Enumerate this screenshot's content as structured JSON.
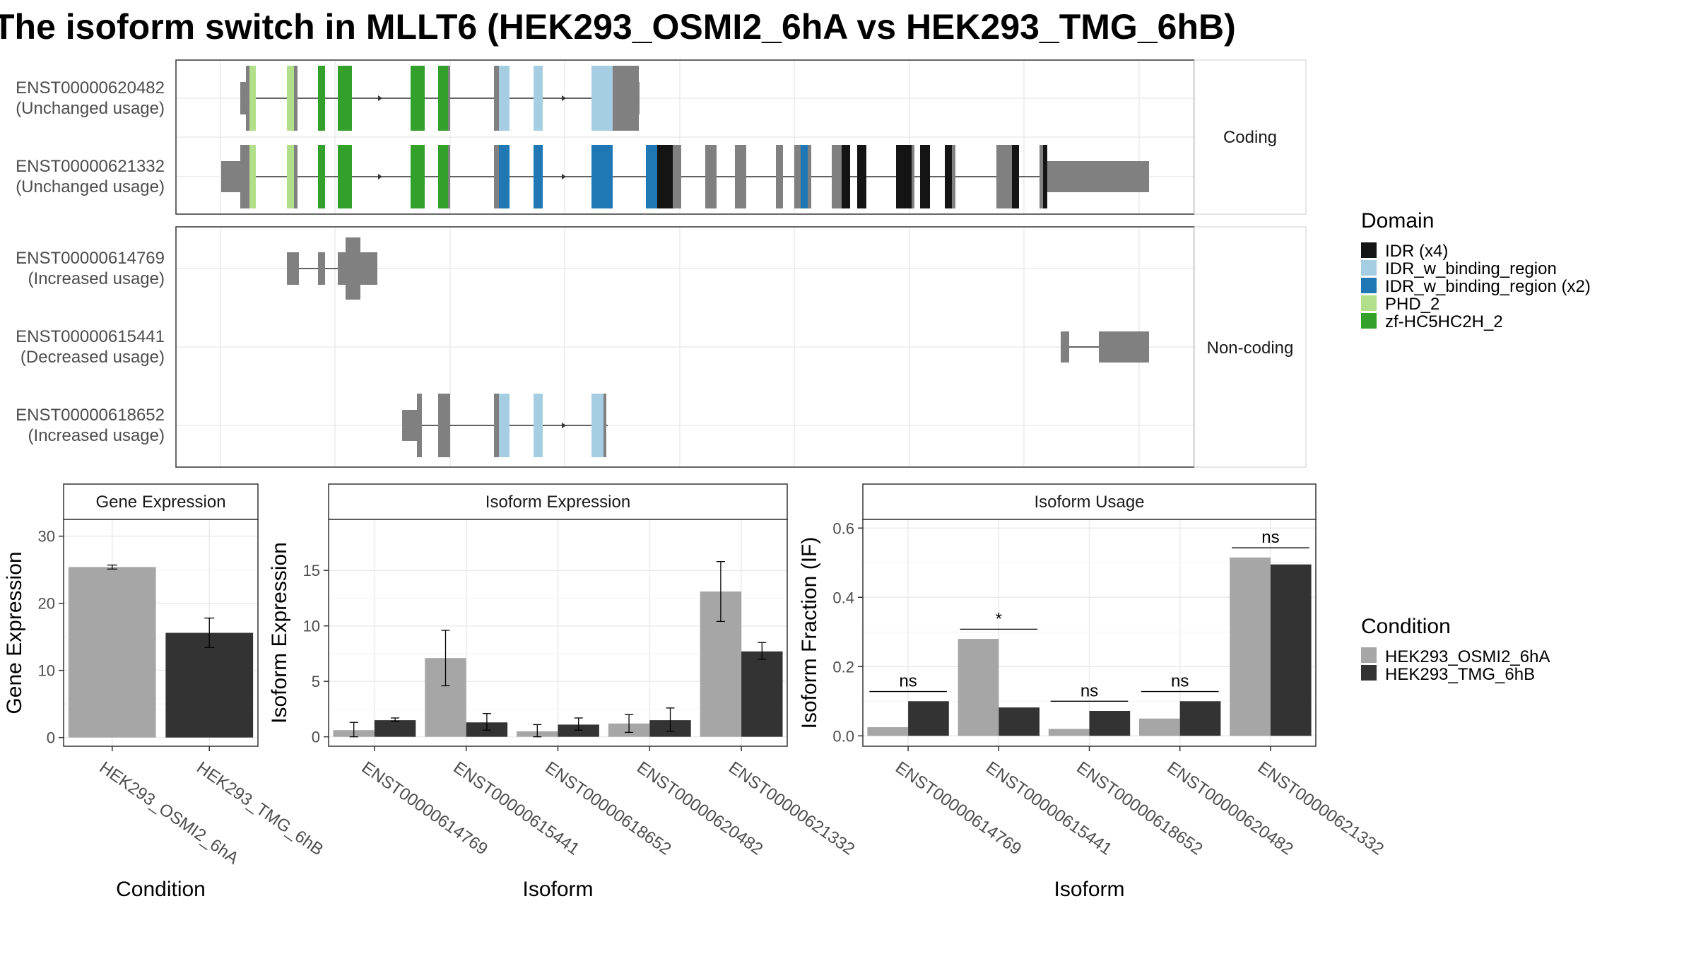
{
  "title": "The isoform switch in MLLT6 (HEK293_OSMI2_6hA vs HEK293_TMG_6hB)",
  "colors": {
    "cond_a": "#a6a6a6",
    "cond_b": "#333333",
    "exon_plain": "#808080",
    "grid": "#ebebeb",
    "frame": "#333333",
    "strip_text": "#1a1a1a",
    "axis_text": "#4d4d4d"
  },
  "structure": {
    "panel_labels": [
      "Coding",
      "Non-coding"
    ],
    "transcripts": [
      {
        "id": "ENST00000620482",
        "usage": "(Unchanged usage)",
        "panel": 0
      },
      {
        "id": "ENST00000621332",
        "usage": "(Unchanged usage)",
        "panel": 0
      },
      {
        "id": "ENST00000614769",
        "usage": "(Increased usage)",
        "panel": 1
      },
      {
        "id": "ENST00000615441",
        "usage": "(Decreased usage)",
        "panel": 1
      },
      {
        "id": "ENST00000618652",
        "usage": "(Increased usage)",
        "panel": 1
      }
    ],
    "domain_legend": {
      "title": "Domain",
      "items": [
        {
          "label": "IDR (x4)",
          "color": "#141414"
        },
        {
          "label": "IDR_w_binding_region",
          "color": "#a6cee3"
        },
        {
          "label": "IDR_w_binding_region (x2)",
          "color": "#1f78b4"
        },
        {
          "label": "PHD_2",
          "color": "#b2df8a"
        },
        {
          "label": "zf-HC5HC2H_2",
          "color": "#33a02c"
        }
      ]
    },
    "condition_legend": {
      "title": "Condition",
      "items": [
        {
          "label": "HEK293_OSMI2_6hA",
          "color": "#a6a6a6"
        },
        {
          "label": "HEK293_TMG_6hB",
          "color": "#333333"
        }
      ]
    }
  },
  "chart_data": [
    {
      "type": "bar",
      "title": "Gene Expression",
      "xlabel": "Condition",
      "ylabel": "Gene Expression",
      "categories": [
        "HEK293_OSMI2_6hA",
        "HEK293_TMG_6hB"
      ],
      "values": [
        25.4,
        15.6
      ],
      "errors": [
        [
          25.1,
          25.7
        ],
        [
          13.4,
          17.8
        ]
      ],
      "ylim": [
        -1.3,
        32.5
      ],
      "yticks": [
        0,
        10,
        20,
        30
      ],
      "legend": "none"
    },
    {
      "type": "bar",
      "title": "Isoform Expression",
      "xlabel": "Isoform",
      "ylabel": "Isoform Expression",
      "categories": [
        "ENST00000614769",
        "ENST00000615441",
        "ENST00000618652",
        "ENST00000620482",
        "ENST00000621332"
      ],
      "series": [
        {
          "name": "HEK293_OSMI2_6hA",
          "values": [
            0.6,
            7.1,
            0.5,
            1.2,
            13.1
          ],
          "errors": [
            [
              0.0,
              1.3
            ],
            [
              4.6,
              9.6
            ],
            [
              0.0,
              1.1
            ],
            [
              0.4,
              2.0
            ],
            [
              10.4,
              15.8
            ]
          ]
        },
        {
          "name": "HEK293_TMG_6hB",
          "values": [
            1.5,
            1.3,
            1.1,
            1.5,
            7.7
          ],
          "errors": [
            [
              1.4,
              1.7
            ],
            [
              0.6,
              2.1
            ],
            [
              0.6,
              1.7
            ],
            [
              0.5,
              2.6
            ],
            [
              7.0,
              8.5
            ]
          ]
        }
      ],
      "ylim": [
        -0.85,
        19.6
      ],
      "yticks": [
        0,
        5,
        10,
        15
      ],
      "legend": "right"
    },
    {
      "type": "bar",
      "title": "Isoform Usage",
      "xlabel": "Isoform",
      "ylabel": "Isoform Fraction (IF)",
      "categories": [
        "ENST00000614769",
        "ENST00000615441",
        "ENST00000618652",
        "ENST00000620482",
        "ENST00000621332"
      ],
      "series": [
        {
          "name": "HEK293_OSMI2_6hA",
          "values": [
            0.025,
            0.28,
            0.02,
            0.05,
            0.515
          ]
        },
        {
          "name": "HEK293_TMG_6hB",
          "values": [
            0.1,
            0.082,
            0.072,
            0.1,
            0.495
          ]
        }
      ],
      "annotations": [
        "ns",
        "*",
        "ns",
        "ns",
        "ns"
      ],
      "ylim": [
        -0.03,
        0.625
      ],
      "yticks": [
        0.0,
        0.2,
        0.4,
        0.6
      ],
      "legend": "right"
    }
  ]
}
